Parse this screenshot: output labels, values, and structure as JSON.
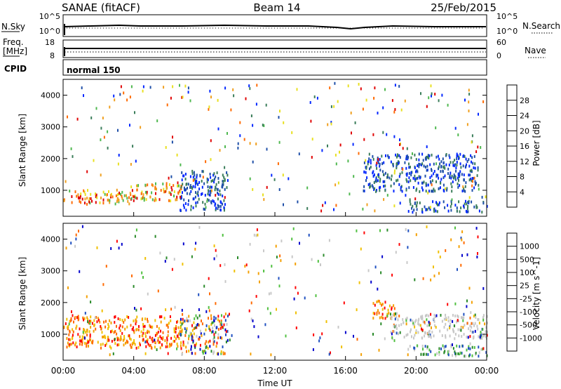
{
  "header": {
    "site": "SANAE (fitACF)",
    "beam": "Beam 14",
    "date": "25/Feb/2015"
  },
  "noise_panel": {
    "left_label": "N.Sky",
    "right_label": "N.Search",
    "left_ticks": [
      "10^5",
      "10^0"
    ],
    "right_ticks": [
      "10^5",
      "10^0"
    ]
  },
  "freq_panel": {
    "left_label_1": "Freq.",
    "left_label_2": "[MHz]",
    "right_label": "Nave",
    "left_ticks": [
      "18",
      "8"
    ],
    "right_ticks": [
      "60",
      "0"
    ]
  },
  "cpid_panel": {
    "label": "CPID",
    "value": "normal 150"
  },
  "chart_data": [
    {
      "type": "heatmap",
      "name": "power",
      "ylabel": "Slant Range [km]",
      "ylim": [
        180,
        4500
      ],
      "yticks": [
        "1000",
        "2000",
        "3000",
        "4000"
      ],
      "colorbar": {
        "label": "Power [dB]",
        "ticks": [
          "28",
          "24",
          "20",
          "16",
          "12",
          "8",
          "4"
        ],
        "colors": [
          "#0026ff",
          "#1f4fa8",
          "#3a7d5a",
          "#4fb84f",
          "#e8e020",
          "#f0a020",
          "#ff6a00",
          "#e00000"
        ]
      },
      "regions": [
        {
          "t": [
            0.0,
            3.8
          ],
          "r": [
            600,
            1050
          ],
          "level": "high"
        },
        {
          "t": [
            3.8,
            6.7
          ],
          "r": [
            700,
            1300
          ],
          "level": "high"
        },
        {
          "t": [
            6.6,
            9.3
          ],
          "r": [
            400,
            1650
          ],
          "level": "low"
        },
        {
          "t": [
            17.0,
            23.5
          ],
          "r": [
            1000,
            2200
          ],
          "level": "low"
        },
        {
          "t": [
            19.5,
            24.0
          ],
          "r": [
            350,
            700
          ],
          "level": "low"
        }
      ]
    },
    {
      "type": "heatmap",
      "name": "velocity",
      "ylabel": "Slant Range [km]",
      "ylim": [
        180,
        4500
      ],
      "yticks": [
        "1000",
        "2000",
        "3000",
        "4000"
      ],
      "colorbar": {
        "label": "Velocity [m s^-1]",
        "ticks": [
          "1000",
          "500",
          "100",
          "25",
          "-25",
          "-100",
          "-500",
          "-1000"
        ],
        "colors": [
          "#ff0000",
          "#ff6a00",
          "#f4a000",
          "#f0c000",
          "#c8c8c8",
          "#50c040",
          "#2a8a2a",
          "#1f50c0",
          "#0000cc"
        ]
      },
      "regions": [
        {
          "t": [
            0.0,
            6.8
          ],
          "r": [
            600,
            1600
          ],
          "level": "negative"
        },
        {
          "t": [
            6.6,
            9.3
          ],
          "r": [
            400,
            1700
          ],
          "level": "mixed"
        },
        {
          "t": [
            17.5,
            18.8
          ],
          "r": [
            1500,
            2100
          ],
          "level": "negative"
        },
        {
          "t": [
            18.5,
            24.0
          ],
          "r": [
            900,
            1700
          ],
          "level": "near-zero"
        },
        {
          "t": [
            19.5,
            24.0
          ],
          "r": [
            350,
            700
          ],
          "level": "positive"
        }
      ]
    }
  ],
  "x_axis": {
    "xlim": [
      0,
      24
    ],
    "ticks": [
      "00:00",
      "04:00",
      "08:00",
      "12:00",
      "16:00",
      "20:00",
      "00:00"
    ],
    "label": "Time UT"
  }
}
